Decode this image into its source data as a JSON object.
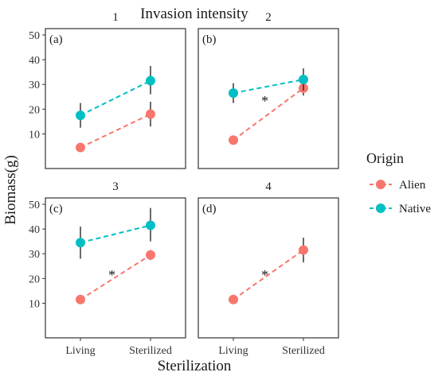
{
  "figure_title": "Invasion intensity",
  "chart_data": {
    "type": "scatter",
    "title": "Invasion intensity",
    "xlabel": "Sterilization",
    "ylabel": "Biomass(g)",
    "categories": [
      "Living",
      "Sterilized"
    ],
    "ylim": [
      5,
      50
    ],
    "yticks": [
      10,
      20,
      30,
      40,
      50
    ],
    "grid": false,
    "connected_by_dashed_lines": true,
    "error_bars": true,
    "legend": {
      "title": "Origin",
      "position": "right",
      "entries": [
        {
          "label": "Alien",
          "color": "#F8766D"
        },
        {
          "label": "Native",
          "color": "#00BFC4"
        }
      ]
    },
    "panels": [
      {
        "strip": "1",
        "tag": "(a)",
        "series": [
          {
            "name": "Alien",
            "color": "#F8766D",
            "values": [
              4.5,
              18
            ],
            "lower": [
              4.5,
              13
            ],
            "upper": [
              4.5,
              23
            ],
            "show_errorbar": [
              false,
              true
            ]
          },
          {
            "name": "Native",
            "color": "#00BFC4",
            "values": [
              17.5,
              31.5
            ],
            "lower": [
              12.5,
              26
            ],
            "upper": [
              22.5,
              37.5
            ],
            "show_errorbar": [
              true,
              true
            ]
          }
        ],
        "annotations": []
      },
      {
        "strip": "2",
        "tag": "(b)",
        "series": [
          {
            "name": "Alien",
            "color": "#F8766D",
            "values": [
              7.5,
              28.5
            ],
            "lower": [
              7.5,
              25.5
            ],
            "upper": [
              7.5,
              31.5
            ],
            "show_errorbar": [
              false,
              true
            ]
          },
          {
            "name": "Native",
            "color": "#00BFC4",
            "values": [
              26.5,
              32
            ],
            "lower": [
              22.5,
              27.5
            ],
            "upper": [
              30.5,
              36.5
            ],
            "show_errorbar": [
              true,
              true
            ]
          }
        ],
        "annotations": [
          {
            "text": "*",
            "category": 0.45,
            "y": 24
          }
        ]
      },
      {
        "strip": "3",
        "tag": "(c)",
        "series": [
          {
            "name": "Alien",
            "color": "#F8766D",
            "values": [
              11.5,
              29.5
            ],
            "lower": [
              11.5,
              27.5
            ],
            "upper": [
              11.5,
              31.5
            ],
            "show_errorbar": [
              false,
              true
            ]
          },
          {
            "name": "Native",
            "color": "#00BFC4",
            "values": [
              34.5,
              41.5
            ],
            "lower": [
              28,
              35
            ],
            "upper": [
              41,
              48.5
            ],
            "show_errorbar": [
              true,
              true
            ]
          }
        ],
        "annotations": [
          {
            "text": "*",
            "category": 0.45,
            "y": 22
          }
        ]
      },
      {
        "strip": "4",
        "tag": "(d)",
        "series": [
          {
            "name": "Alien",
            "color": "#F8766D",
            "values": [
              11.5,
              31.5
            ],
            "lower": [
              11.5,
              26.5
            ],
            "upper": [
              11.5,
              36.5
            ],
            "show_errorbar": [
              false,
              true
            ]
          }
        ],
        "annotations": [
          {
            "text": "*",
            "category": 0.45,
            "y": 22
          }
        ]
      }
    ]
  }
}
